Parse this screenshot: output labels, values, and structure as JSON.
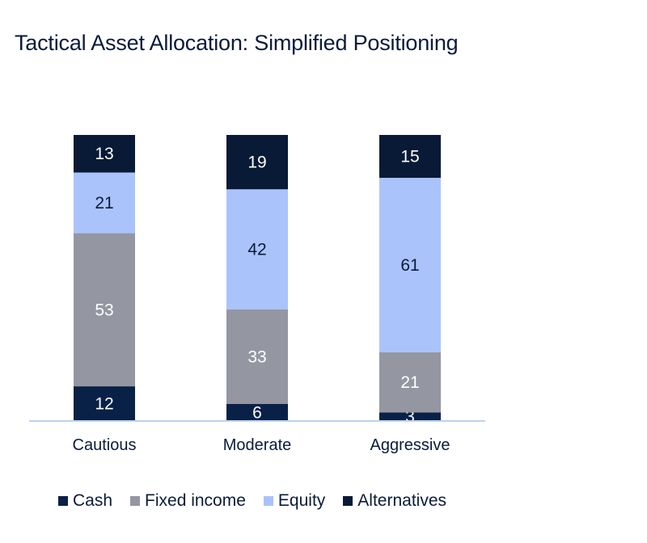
{
  "chart_data": {
    "type": "bar",
    "stacked": true,
    "title": "Tactical Asset Allocation: Simplified Positioning",
    "xlabel": "",
    "ylabel": "",
    "ylim": [
      0,
      100
    ],
    "categories": [
      "Cautious",
      "Moderate",
      "Aggressive"
    ],
    "series": [
      {
        "name": "Cash",
        "values": [
          12,
          6,
          3
        ],
        "color": "#0a2147",
        "label_color": "#ffffff"
      },
      {
        "name": "Fixed income",
        "values": [
          53,
          33,
          21
        ],
        "color": "#9497a2",
        "label_color": "#ffffff"
      },
      {
        "name": "Equity",
        "values": [
          21,
          42,
          61
        ],
        "color": "#aac3fb",
        "label_color": "#0b1b3a"
      },
      {
        "name": "Alternatives",
        "values": [
          13,
          19,
          15
        ],
        "color": "#081a36",
        "label_color": "#ffffff"
      }
    ],
    "grid": false,
    "legend_position": "bottom"
  }
}
